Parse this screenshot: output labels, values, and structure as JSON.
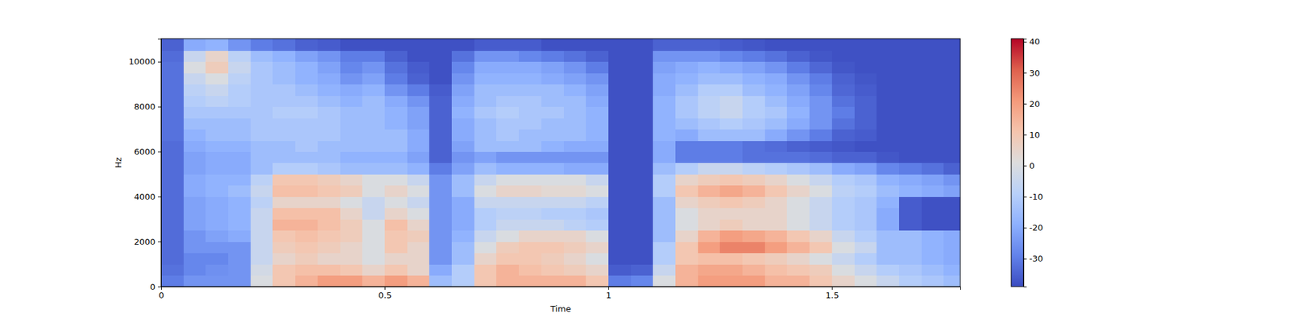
{
  "chart_data": {
    "type": "heatmap",
    "x_label": "Time",
    "y_label": "Hz",
    "xlim": [
      0,
      1.787
    ],
    "ylim": [
      0,
      11025
    ],
    "xticks": [
      0,
      0.5,
      1,
      1.5
    ],
    "yticks": [
      0,
      2000,
      4000,
      6000,
      8000,
      10000
    ],
    "x_edges": [
      0,
      0.05,
      0.1,
      0.15,
      0.2,
      0.25,
      0.3,
      0.35,
      0.4,
      0.45,
      0.5,
      0.55,
      0.6,
      0.65,
      0.7,
      0.75,
      0.8,
      0.85,
      0.9,
      0.95,
      1.0,
      1.05,
      1.1,
      1.15,
      1.2,
      1.25,
      1.3,
      1.35,
      1.4,
      1.45,
      1.5,
      1.55,
      1.6,
      1.65,
      1.7,
      1.75,
      1.787
    ],
    "y_edges": [
      0,
      500,
      1000,
      1500,
      2000,
      2500,
      3000,
      3500,
      4000,
      4500,
      5000,
      5500,
      6000,
      6500,
      7000,
      7500,
      8000,
      8500,
      9000,
      9500,
      10000,
      10500,
      11025
    ],
    "cells": [
      [
        -30,
        -25,
        -25,
        -25,
        0,
        10,
        15,
        20,
        20,
        15,
        20,
        15,
        -15,
        -10,
        10,
        15,
        15,
        15,
        15,
        10,
        -30,
        -28,
        0,
        15,
        20,
        20,
        20,
        15,
        15,
        10,
        5,
        0,
        -5,
        -10,
        -12,
        -15
      ],
      [
        -32,
        -28,
        -26,
        -25,
        -2,
        10,
        12,
        12,
        10,
        5,
        10,
        5,
        -20,
        -10,
        10,
        15,
        12,
        10,
        8,
        5,
        -36,
        -35,
        -5,
        15,
        18,
        18,
        15,
        12,
        10,
        8,
        0,
        -5,
        -10,
        -12,
        -15,
        -18
      ],
      [
        -33,
        -28,
        -28,
        -25,
        -5,
        5,
        8,
        5,
        5,
        0,
        5,
        5,
        -25,
        -15,
        5,
        10,
        10,
        8,
        5,
        0,
        -38,
        -38,
        -10,
        10,
        12,
        12,
        10,
        8,
        5,
        0,
        -5,
        -10,
        -15,
        -15,
        -18,
        -20
      ],
      [
        -33,
        -25,
        -25,
        -25,
        -5,
        8,
        10,
        8,
        5,
        0,
        10,
        5,
        -25,
        -15,
        0,
        8,
        10,
        10,
        8,
        5,
        -38,
        -38,
        -10,
        10,
        20,
        25,
        25,
        20,
        15,
        10,
        0,
        -5,
        -15,
        -15,
        -18,
        -20
      ],
      [
        -33,
        -25,
        -22,
        -20,
        -5,
        10,
        12,
        10,
        8,
        0,
        10,
        8,
        -25,
        -18,
        -5,
        0,
        5,
        5,
        5,
        0,
        -38,
        -38,
        -15,
        5,
        15,
        20,
        18,
        15,
        10,
        5,
        -5,
        -10,
        -15,
        -15,
        -18,
        -20
      ],
      [
        -33,
        -22,
        -20,
        -18,
        -5,
        15,
        15,
        12,
        8,
        0,
        12,
        5,
        -25,
        -20,
        -10,
        -5,
        -5,
        -5,
        -8,
        -10,
        -38,
        -38,
        -15,
        0,
        5,
        8,
        5,
        5,
        0,
        -5,
        -10,
        -12,
        -20,
        -36,
        -38,
        -38
      ],
      [
        -33,
        -22,
        -20,
        -18,
        -5,
        12,
        12,
        12,
        5,
        -5,
        5,
        0,
        -25,
        -20,
        -10,
        -8,
        -8,
        -10,
        -10,
        -12,
        -38,
        -38,
        -15,
        0,
        5,
        5,
        5,
        5,
        0,
        -5,
        -10,
        -12,
        -20,
        -36,
        -38,
        -38
      ],
      [
        -33,
        -22,
        -20,
        -18,
        -8,
        5,
        5,
        5,
        0,
        -5,
        0,
        -5,
        -25,
        -20,
        -5,
        -5,
        -5,
        -5,
        -5,
        -8,
        -38,
        -38,
        -15,
        5,
        8,
        10,
        8,
        5,
        0,
        -5,
        -10,
        -12,
        -18,
        -36,
        -38,
        -38
      ],
      [
        -33,
        -20,
        -18,
        -15,
        -5,
        12,
        12,
        10,
        8,
        0,
        5,
        0,
        -25,
        -15,
        0,
        5,
        5,
        3,
        3,
        0,
        -38,
        -38,
        -10,
        10,
        15,
        18,
        15,
        10,
        5,
        0,
        -8,
        -10,
        -15,
        -18,
        -20,
        -22
      ],
      [
        -33,
        -20,
        -18,
        -18,
        -8,
        10,
        10,
        8,
        5,
        0,
        0,
        -5,
        -25,
        -15,
        -5,
        0,
        0,
        0,
        0,
        -5,
        -38,
        -38,
        -10,
        5,
        8,
        10,
        8,
        5,
        0,
        -5,
        -10,
        -12,
        -18,
        -20,
        -22,
        -25
      ],
      [
        -33,
        -22,
        -20,
        -20,
        -15,
        -10,
        -10,
        -12,
        -15,
        -15,
        -15,
        -18,
        -30,
        -22,
        -15,
        -18,
        -18,
        -18,
        -20,
        -20,
        -38,
        -38,
        -15,
        -10,
        -5,
        -5,
        -8,
        -10,
        -12,
        -15,
        -20,
        -22,
        -28,
        -30,
        -32,
        -35
      ],
      [
        -33,
        -22,
        -20,
        -20,
        -15,
        -15,
        -15,
        -15,
        -18,
        -18,
        -18,
        -22,
        -35,
        -25,
        -22,
        -25,
        -25,
        -25,
        -25,
        -25,
        -38,
        -38,
        -20,
        -30,
        -30,
        -30,
        -32,
        -32,
        -32,
        -33,
        -35,
        -35,
        -37,
        -38,
        -38,
        -38
      ],
      [
        -33,
        -20,
        -18,
        -18,
        -15,
        -15,
        -12,
        -15,
        -15,
        -15,
        -15,
        -20,
        -35,
        -22,
        -15,
        -15,
        -15,
        -18,
        -20,
        -20,
        -38,
        -38,
        -20,
        -30,
        -30,
        -30,
        -32,
        -33,
        -35,
        -36,
        -37,
        -38,
        -38,
        -38,
        -38,
        -38
      ],
      [
        -32,
        -18,
        -15,
        -15,
        -12,
        -12,
        -12,
        -12,
        -15,
        -15,
        -15,
        -20,
        -35,
        -20,
        -15,
        -12,
        -15,
        -15,
        -15,
        -18,
        -38,
        -38,
        -18,
        -20,
        -15,
        -15,
        -15,
        -20,
        -25,
        -30,
        -35,
        -36,
        -38,
        -38,
        -38,
        -38
      ],
      [
        -32,
        -15,
        -15,
        -15,
        -12,
        -12,
        -12,
        -12,
        -15,
        -15,
        -18,
        -22,
        -35,
        -20,
        -15,
        -12,
        -12,
        -15,
        -15,
        -18,
        -38,
        -38,
        -18,
        -15,
        -12,
        -10,
        -12,
        -15,
        -20,
        -25,
        -32,
        -35,
        -38,
        -38,
        -38,
        -38
      ],
      [
        -32,
        -12,
        -12,
        -12,
        -12,
        -10,
        -10,
        -12,
        -15,
        -15,
        -18,
        -22,
        -35,
        -18,
        -12,
        -10,
        -12,
        -12,
        -15,
        -18,
        -38,
        -38,
        -18,
        -12,
        -8,
        -5,
        -10,
        -12,
        -18,
        -25,
        -30,
        -35,
        -38,
        -38,
        -38,
        -38
      ],
      [
        -32,
        -10,
        -8,
        -10,
        -12,
        -12,
        -12,
        -15,
        -18,
        -15,
        -20,
        -25,
        -35,
        -20,
        -15,
        -12,
        -12,
        -15,
        -15,
        -20,
        -38,
        -38,
        -18,
        -12,
        -8,
        -5,
        -10,
        -15,
        -20,
        -25,
        -32,
        -35,
        -38,
        -38,
        -38,
        -38
      ],
      [
        -32,
        -8,
        -5,
        -10,
        -12,
        -12,
        -15,
        -18,
        -20,
        -18,
        -25,
        -30,
        -36,
        -22,
        -15,
        -15,
        -15,
        -15,
        -18,
        -22,
        -38,
        -38,
        -20,
        -15,
        -10,
        -10,
        -15,
        -18,
        -22,
        -28,
        -34,
        -36,
        -38,
        -38,
        -38,
        -38
      ],
      [
        -32,
        -5,
        0,
        -8,
        -12,
        -15,
        -18,
        -20,
        -25,
        -22,
        -30,
        -35,
        -38,
        -25,
        -18,
        -18,
        -18,
        -20,
        -22,
        -25,
        -38,
        -38,
        -20,
        -18,
        -15,
        -15,
        -18,
        -20,
        -25,
        -30,
        -35,
        -37,
        -38,
        -38,
        -38,
        -38
      ],
      [
        -32,
        0,
        8,
        -5,
        -12,
        -15,
        -18,
        -22,
        -28,
        -25,
        -32,
        -36,
        -38,
        -28,
        -20,
        -20,
        -20,
        -22,
        -25,
        -30,
        -38,
        -38,
        -22,
        -20,
        -18,
        -20,
        -22,
        -25,
        -30,
        -34,
        -37,
        -38,
        -38,
        -38,
        -38,
        -38
      ],
      [
        -33,
        -5,
        5,
        -8,
        -15,
        -18,
        -22,
        -25,
        -30,
        -30,
        -35,
        -38,
        -38,
        -32,
        -25,
        -25,
        -28,
        -30,
        -32,
        -35,
        -38,
        -38,
        -25,
        -25,
        -25,
        -28,
        -30,
        -32,
        -35,
        -37,
        -38,
        -38,
        -38,
        -38,
        -38,
        -38
      ],
      [
        -35,
        -20,
        -18,
        -25,
        -30,
        -32,
        -35,
        -36,
        -38,
        -38,
        -38,
        -38,
        -38,
        -38,
        -36,
        -36,
        -36,
        -38,
        -38,
        -38,
        -38,
        -38,
        -35,
        -35,
        -35,
        -36,
        -37,
        -38,
        -38,
        -38,
        -38,
        -38,
        -38,
        -38,
        -38,
        -38
      ]
    ],
    "color_range": [
      -39,
      41
    ],
    "color_ticks": [
      -30,
      -20,
      -10,
      0,
      10,
      20,
      30,
      40
    ]
  }
}
